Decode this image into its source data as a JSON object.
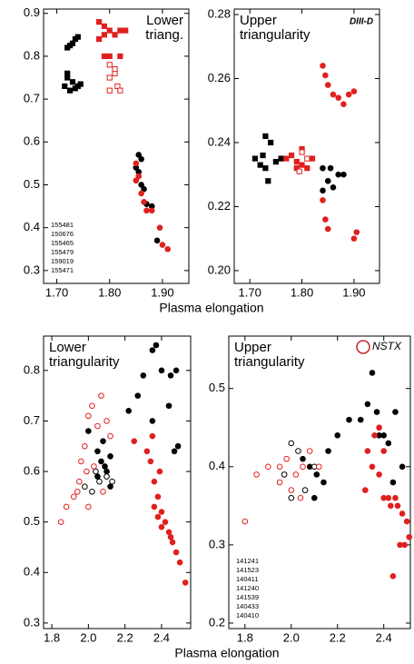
{
  "chart_data": [
    {
      "type": "scatter",
      "title": [
        "Lower",
        "triang."
      ],
      "xlabel": "Plasma elongation",
      "xlim": [
        1.675,
        1.95
      ],
      "ylim": [
        0.27,
        0.91
      ],
      "xticks": [
        {
          "value": 1.7,
          "label": "1.70"
        },
        {
          "value": 1.8,
          "label": "1.80"
        },
        {
          "value": 1.9,
          "label": "1.90"
        }
      ],
      "yticks": [
        0.3,
        0.4,
        0.5,
        0.6,
        0.7,
        0.8,
        0.9
      ],
      "legend": "lower left",
      "series": [
        {
          "name": "155481",
          "color": "#000000",
          "marker": "square",
          "filled": true,
          "x": [
            1.715,
            1.72,
            1.725,
            1.73,
            1.74,
            1.72,
            1.735,
            1.745
          ],
          "y": [
            0.73,
            0.75,
            0.72,
            0.74,
            0.73,
            0.76,
            0.725,
            0.735
          ]
        },
        {
          "name": "150676",
          "color": "#000000",
          "marker": "square",
          "filled": true,
          "x": [
            1.72,
            1.73,
            1.735,
            1.74,
            1.725
          ],
          "y": [
            0.82,
            0.83,
            0.84,
            0.845,
            0.825
          ]
        },
        {
          "name": "155465",
          "color": "#000000",
          "marker": "circle",
          "filled": true,
          "x": [
            1.855,
            1.86,
            1.855,
            1.86,
            1.865,
            1.87,
            1.88,
            1.89,
            1.85
          ],
          "y": [
            0.57,
            0.56,
            0.53,
            0.5,
            0.49,
            0.455,
            0.45,
            0.37,
            0.54
          ]
        },
        {
          "name": "155479",
          "color": "#e0201e",
          "marker": "square",
          "filled": true,
          "x": [
            1.78,
            1.79,
            1.8,
            1.78,
            1.81,
            1.82,
            1.83,
            1.79,
            1.8,
            1.82,
            1.79
          ],
          "y": [
            0.88,
            0.85,
            0.86,
            0.84,
            0.85,
            0.86,
            0.86,
            0.87,
            0.8,
            0.8,
            0.8
          ]
        },
        {
          "name": "159019",
          "color": "#e0201e",
          "marker": "square",
          "filled": false,
          "x": [
            1.8,
            1.81,
            1.8,
            1.815,
            1.82,
            1.8,
            1.81
          ],
          "y": [
            0.78,
            0.76,
            0.75,
            0.73,
            0.72,
            0.72,
            0.77
          ]
        },
        {
          "name": "155471",
          "color": "#e0201e",
          "marker": "circle",
          "filled": true,
          "x": [
            1.85,
            1.855,
            1.86,
            1.865,
            1.87,
            1.88,
            1.895,
            1.9,
            1.91,
            1.85
          ],
          "y": [
            0.55,
            0.52,
            0.48,
            0.46,
            0.44,
            0.44,
            0.4,
            0.36,
            0.35,
            0.51
          ]
        }
      ]
    },
    {
      "type": "scatter",
      "title": [
        "Upper",
        "triangularity"
      ],
      "logo": "DIII-D",
      "xlim": [
        1.67,
        1.949
      ],
      "ylim": [
        0.196,
        0.2817
      ],
      "xticks": [
        {
          "value": 1.7,
          "label": "1.70"
        },
        {
          "value": 1.8,
          "label": "1.80"
        },
        {
          "value": 1.9,
          "label": "1.90"
        }
      ],
      "yticks": [
        {
          "value": 0.2,
          "label": "0.20"
        },
        0.22,
        0.24,
        0.26,
        0.28
      ],
      "series": [
        {
          "color": "#000000",
          "marker": "square",
          "filled": true,
          "x": [
            1.71,
            1.72,
            1.73,
            1.725,
            1.74,
            1.73,
            1.75,
            1.76,
            1.735
          ],
          "y": [
            0.235,
            0.233,
            0.232,
            0.236,
            0.24,
            0.242,
            0.234,
            0.235,
            0.228
          ]
        },
        {
          "color": "#000000",
          "marker": "circle",
          "filled": true,
          "x": [
            1.84,
            1.85,
            1.86,
            1.87,
            1.855,
            1.84,
            1.88
          ],
          "y": [
            0.232,
            0.228,
            0.226,
            0.23,
            0.232,
            0.225,
            0.23
          ]
        },
        {
          "color": "#e0201e",
          "marker": "square",
          "filled": true,
          "x": [
            1.77,
            1.78,
            1.79,
            1.8,
            1.81,
            1.82,
            1.8,
            1.79
          ],
          "y": [
            0.235,
            0.236,
            0.234,
            0.233,
            0.232,
            0.235,
            0.238,
            0.232
          ]
        },
        {
          "color": "#e0201e",
          "marker": "square",
          "filled": false,
          "x": [
            1.8,
            1.81,
            1.795
          ],
          "y": [
            0.237,
            0.235,
            0.231
          ]
        },
        {
          "color": "#e0201e",
          "marker": "circle",
          "filled": true,
          "x": [
            1.84,
            1.845,
            1.85,
            1.86,
            1.87,
            1.89,
            1.9,
            1.88,
            1.84,
            1.845,
            1.85,
            1.9,
            1.905
          ],
          "y": [
            0.264,
            0.261,
            0.258,
            0.255,
            0.254,
            0.255,
            0.256,
            0.252,
            0.222,
            0.216,
            0.213,
            0.21,
            0.212
          ]
        }
      ]
    },
    {
      "type": "scatter",
      "title": [
        "Lower",
        "triangularity"
      ],
      "xlabel": "Plasma elongation",
      "xlim": [
        1.755,
        2.559
      ],
      "ylim": [
        0.289,
        0.868
      ],
      "xticks": [
        1.8,
        {
          "value": 2,
          "label": "2.0"
        },
        2.2,
        2.4
      ],
      "yticks": [
        0.3,
        0.4,
        0.5,
        0.6,
        0.7,
        0.8
      ],
      "series": [
        {
          "color": "#000000",
          "marker": "circle",
          "filled": true,
          "x": [
            2.3,
            2.35,
            2.37,
            2.4,
            2.45,
            2.44,
            2.48,
            2.47,
            2.49,
            2.35,
            2.22,
            2.27
          ],
          "y": [
            0.79,
            0.84,
            0.85,
            0.8,
            0.79,
            0.73,
            0.8,
            0.64,
            0.65,
            0.7,
            0.72,
            0.75
          ]
        },
        {
          "color": "#000000",
          "marker": "circle",
          "filled": true,
          "x": [
            2.05,
            2.07,
            2.1,
            2.12,
            2.08,
            2.05,
            2.12,
            2.0,
            2.09
          ],
          "y": [
            0.64,
            0.62,
            0.6,
            0.63,
            0.66,
            0.59,
            0.57,
            0.68,
            0.61
          ]
        },
        {
          "color": "#000000",
          "marker": "circle",
          "filled": false,
          "x": [
            1.98,
            2.02,
            2.06,
            2.1,
            2.04,
            2.13
          ],
          "y": [
            0.57,
            0.56,
            0.58,
            0.59,
            0.6,
            0.58
          ]
        },
        {
          "color": "#e0201e",
          "marker": "circle",
          "filled": true,
          "x": [
            2.34,
            2.36,
            2.38,
            2.4,
            2.42,
            2.44,
            2.46,
            2.5,
            2.53,
            2.35
          ],
          "y": [
            0.62,
            0.58,
            0.55,
            0.52,
            0.5,
            0.48,
            0.46,
            0.42,
            0.38,
            0.67
          ]
        },
        {
          "color": "#e0201e",
          "marker": "circle",
          "filled": true,
          "x": [
            2.36,
            2.38,
            2.39,
            2.45,
            2.48,
            2.32,
            2.25,
            2.4
          ],
          "y": [
            0.53,
            0.51,
            0.6,
            0.47,
            0.44,
            0.64,
            0.66,
            0.49
          ]
        },
        {
          "color": "#e0201e",
          "marker": "circle",
          "filled": false,
          "x": [
            1.96,
            1.98,
            2.0,
            2.02,
            2.05,
            2.07,
            2.1,
            2.12,
            1.99
          ],
          "y": [
            0.62,
            0.65,
            0.71,
            0.73,
            0.69,
            0.75,
            0.7,
            0.67,
            0.6
          ]
        },
        {
          "color": "#e0201e",
          "marker": "circle",
          "filled": false,
          "x": [
            1.85,
            1.88,
            1.92,
            1.95,
            2.0,
            2.08,
            2.03,
            1.94
          ],
          "y": [
            0.5,
            0.53,
            0.55,
            0.58,
            0.53,
            0.56,
            0.61,
            0.56
          ]
        }
      ]
    },
    {
      "type": "scatter",
      "title": [
        "Upper",
        "triangularity"
      ],
      "logo": "NSTX",
      "xlim": [
        1.73,
        2.515
      ],
      "ylim": [
        0.193,
        0.567
      ],
      "xticks": [
        1.8,
        {
          "value": 2,
          "label": "2.0"
        },
        2.2,
        2.4
      ],
      "yticks": [
        0.2,
        0.3,
        0.4,
        0.5
      ],
      "legend": "lower left",
      "series": [
        {
          "name": "141241",
          "color": "#000000",
          "marker": "circle",
          "filled": true,
          "x": [
            2.33,
            2.35,
            2.37,
            2.4,
            2.42,
            2.45,
            2.38,
            2.3,
            2.48,
            2.44
          ],
          "y": [
            0.48,
            0.52,
            0.47,
            0.44,
            0.43,
            0.47,
            0.44,
            0.46,
            0.4,
            0.38
          ]
        },
        {
          "name": "141523",
          "color": "#000000",
          "marker": "circle",
          "filled": true,
          "x": [
            2.05,
            2.08,
            2.11,
            2.14,
            2.1,
            2.16,
            2.2,
            2.25
          ],
          "y": [
            0.41,
            0.4,
            0.39,
            0.38,
            0.36,
            0.42,
            0.44,
            0.46
          ]
        },
        {
          "name": "140411",
          "color": "#000000",
          "marker": "circle",
          "filled": false,
          "x": [
            1.97,
            2.0,
            2.03,
            2.06,
            2.0,
            2.1
          ],
          "y": [
            0.39,
            0.43,
            0.42,
            0.37,
            0.36,
            0.4
          ]
        },
        {
          "name": "141240",
          "color": "#e0201e",
          "marker": "circle",
          "filled": true,
          "x": [
            2.33,
            2.35,
            2.38,
            2.4,
            2.43,
            2.46,
            2.48,
            2.36,
            2.5,
            2.51
          ],
          "y": [
            0.42,
            0.4,
            0.39,
            0.36,
            0.35,
            0.35,
            0.34,
            0.44,
            0.33,
            0.31
          ]
        },
        {
          "name": "141539",
          "color": "#e0201e",
          "marker": "circle",
          "filled": true,
          "x": [
            2.32,
            2.38,
            2.4,
            2.45,
            2.47,
            2.49,
            2.44,
            2.42
          ],
          "y": [
            0.37,
            0.45,
            0.42,
            0.36,
            0.3,
            0.3,
            0.26,
            0.36
          ]
        },
        {
          "name": "140433",
          "color": "#e0201e",
          "marker": "circle",
          "filled": false,
          "x": [
            1.95,
            1.98,
            2.02,
            2.05,
            2.08,
            2.12
          ],
          "y": [
            0.4,
            0.41,
            0.39,
            0.4,
            0.42,
            0.4
          ]
        },
        {
          "name": "140410",
          "color": "#e0201e",
          "marker": "circle",
          "filled": false,
          "x": [
            1.8,
            1.85,
            1.9,
            1.95,
            2.0,
            2.04
          ],
          "y": [
            0.33,
            0.39,
            0.4,
            0.38,
            0.37,
            0.36
          ]
        }
      ]
    }
  ]
}
